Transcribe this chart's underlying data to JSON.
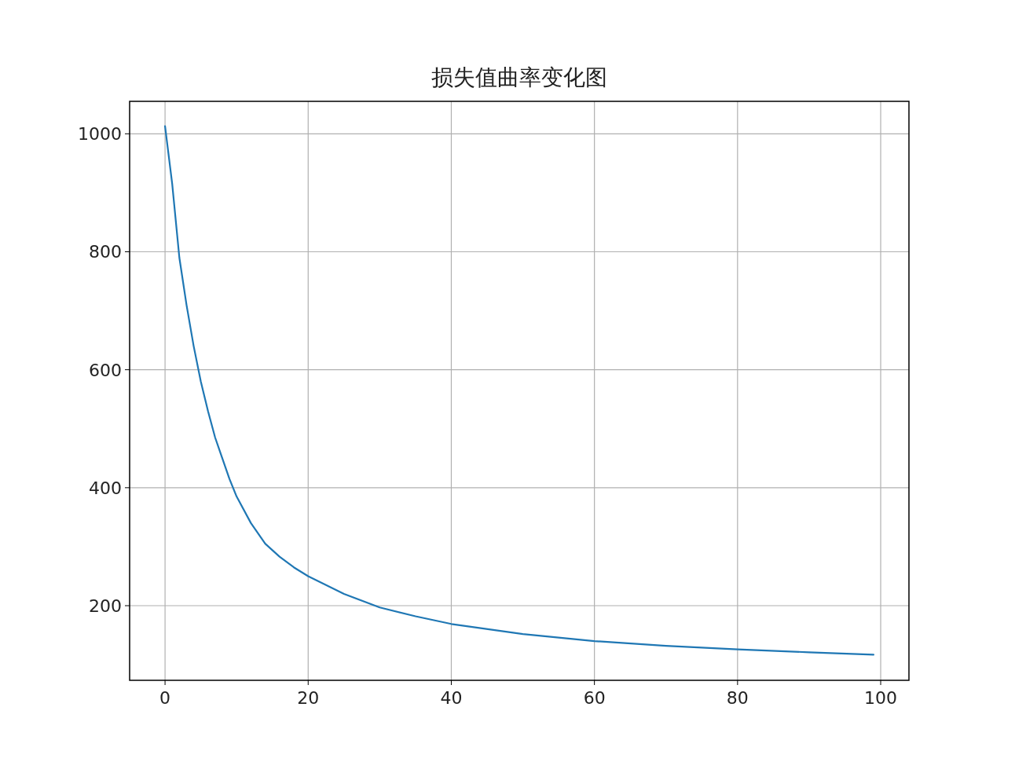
{
  "chart_data": {
    "type": "line",
    "title": "损失值曲率变化图",
    "x": [
      0,
      1,
      2,
      3,
      4,
      5,
      6,
      7,
      8,
      9,
      10,
      12,
      14,
      16,
      18,
      20,
      25,
      30,
      35,
      40,
      50,
      60,
      70,
      80,
      90,
      99
    ],
    "series": [
      {
        "color": "#1f77b4",
        "values": [
          1013,
          915,
          790,
          710,
          640,
          580,
          530,
          485,
          450,
          415,
          385,
          340,
          305,
          283,
          265,
          250,
          220,
          197,
          182,
          169,
          152,
          140,
          132,
          126,
          121,
          117
        ]
      }
    ],
    "xlim": [
      -4.95,
      103.95
    ],
    "ylim": [
      73.5,
      1055
    ],
    "xticks": [
      0,
      20,
      40,
      60,
      80,
      100
    ],
    "yticks": [
      200,
      400,
      600,
      800,
      1000
    ],
    "grid": true
  }
}
